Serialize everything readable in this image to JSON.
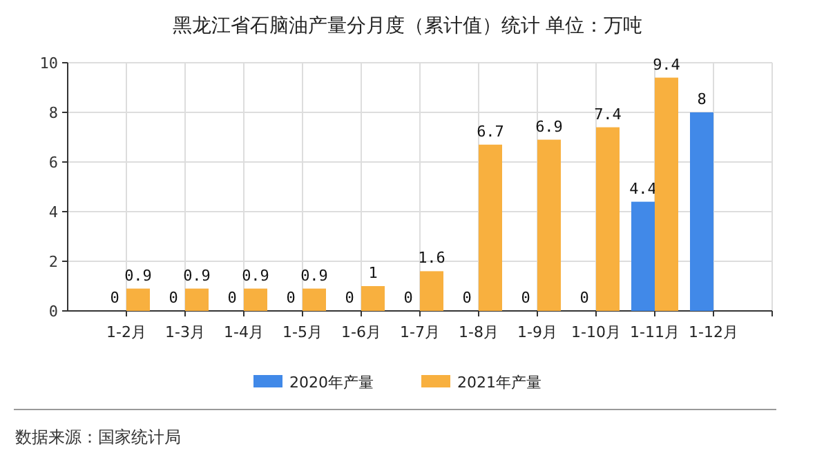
{
  "chart_data": {
    "type": "bar",
    "title": "黑龙江省石脑油产量分月度（累计值）统计 单位：万吨",
    "categories": [
      "1-2月",
      "1-3月",
      "1-4月",
      "1-5月",
      "1-6月",
      "1-7月",
      "1-8月",
      "1-9月",
      "1-10月",
      "1-11月",
      "1-12月"
    ],
    "series": [
      {
        "name": "2020年产量",
        "color": "#4189e8",
        "values": [
          0,
          0,
          0,
          0,
          0,
          0,
          0,
          0,
          0,
          4.4,
          8
        ]
      },
      {
        "name": "2021年产量",
        "color": "#f8b03f",
        "values": [
          0.9,
          0.9,
          0.9,
          0.9,
          1,
          1.6,
          6.7,
          6.9,
          7.4,
          9.4,
          null
        ]
      }
    ],
    "ylim": [
      0,
      10
    ],
    "yticks": [
      0,
      2,
      4,
      6,
      8,
      10
    ],
    "grid": true,
    "legend": "bottom",
    "data_labels": true,
    "annotations": [
      "数据来源：国家统计局"
    ]
  }
}
